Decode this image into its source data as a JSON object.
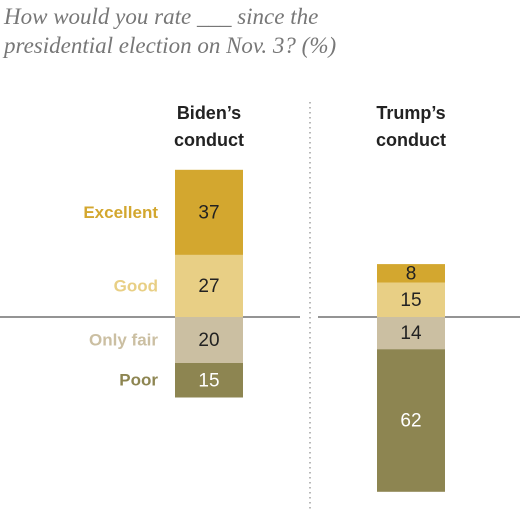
{
  "chart_data": {
    "type": "diverging_stacked_bar",
    "title": "How would you rate ___ since the presidential election on Nov. 3? (%)",
    "categories": [
      "Biden’s conduct",
      "Trump’s conduct"
    ],
    "series": [
      {
        "name": "Excellent",
        "color": "#d3a72f",
        "values": [
          37,
          8
        ]
      },
      {
        "name": "Good",
        "color": "#e8cf85",
        "values": [
          27,
          15
        ]
      },
      {
        "name": "Only fair",
        "color": "#cbbfa2",
        "values": [
          20,
          14
        ]
      },
      {
        "name": "Poor",
        "color": "#8d8551",
        "values": [
          15,
          62
        ]
      }
    ]
  }
}
